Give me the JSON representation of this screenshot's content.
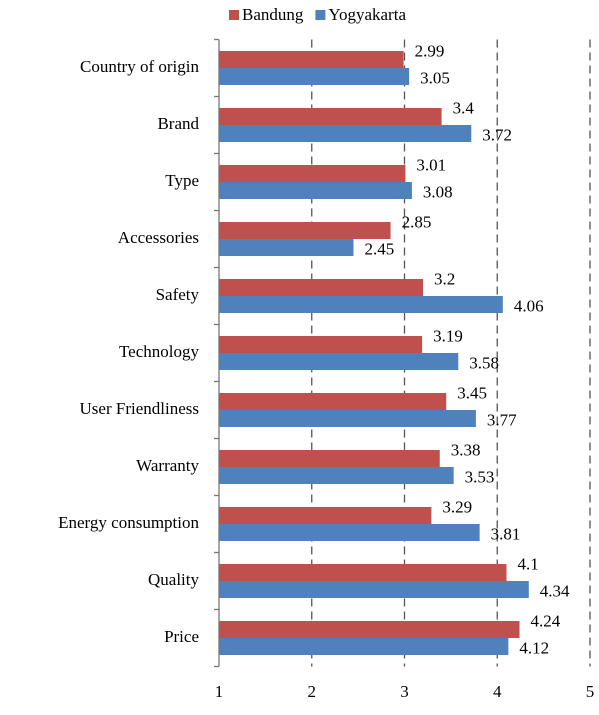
{
  "chart_data": {
    "type": "hbar",
    "categories": [
      "Country of origin",
      "Brand",
      "Type",
      "Accessories",
      "Safety",
      "Technology",
      "User Friendliness",
      "Warranty",
      "Energy consumption",
      "Quality",
      "Price"
    ],
    "series": [
      {
        "name": "Bandung",
        "color": "#c0504d",
        "values": [
          2.99,
          3.4,
          3.01,
          2.85,
          3.2,
          3.19,
          3.45,
          3.38,
          3.29,
          4.1,
          4.24
        ]
      },
      {
        "name": "Yogyakarta",
        "color": "#4f81bd",
        "values": [
          3.05,
          3.72,
          3.08,
          2.45,
          4.06,
          3.58,
          3.77,
          3.53,
          3.81,
          4.34,
          4.12
        ]
      }
    ],
    "xlim": [
      1,
      5
    ],
    "xticks": [
      1,
      2,
      3,
      4,
      5
    ],
    "grid": true,
    "legend": "top"
  }
}
